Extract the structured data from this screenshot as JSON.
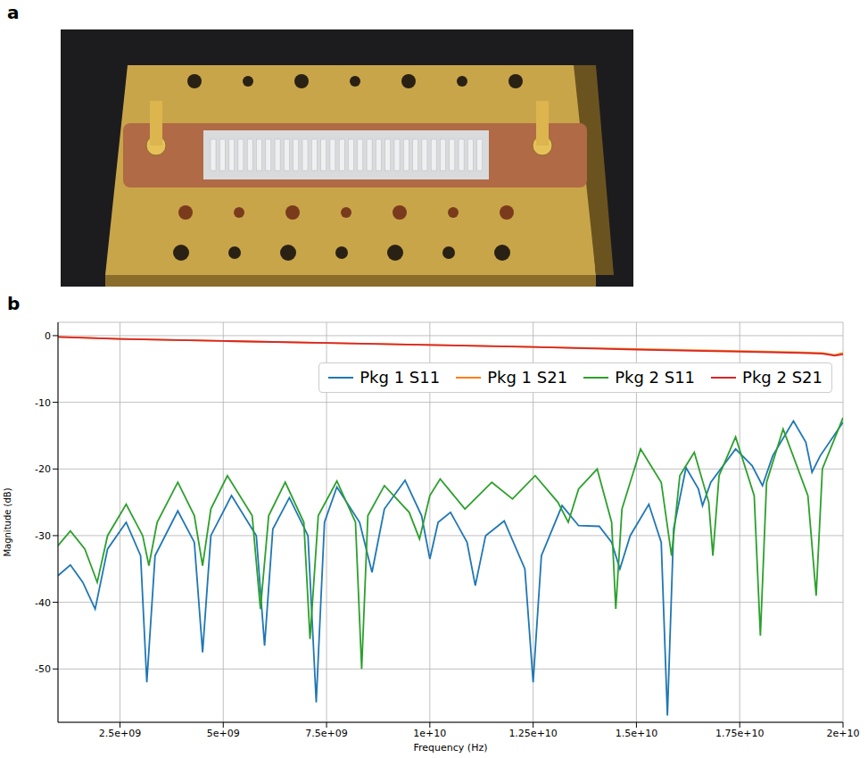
{
  "panel_labels": [
    "a",
    "b"
  ],
  "chart_data": {
    "type": "line",
    "x_label": "Frequency (Hz)",
    "y_label": "Magnitude (dB)",
    "xlim": [
      1000000000.0,
      20000000000.0
    ],
    "ylim": [
      -58,
      2
    ],
    "xticks": [
      {
        "value": 2500000000.0,
        "label": "2.5e+09"
      },
      {
        "value": 5000000000.0,
        "label": "5e+09"
      },
      {
        "value": 7500000000.0,
        "label": "7.5e+09"
      },
      {
        "value": 10000000000.0,
        "label": "1e+10"
      },
      {
        "value": 12500000000.0,
        "label": "1.25e+10"
      },
      {
        "value": 15000000000.0,
        "label": "1.5e+10"
      },
      {
        "value": 17500000000.0,
        "label": "1.75e+10"
      },
      {
        "value": 20000000000.0,
        "label": "2e+10"
      }
    ],
    "yticks": [
      -50,
      -40,
      -30,
      -20,
      -10,
      0
    ],
    "grid": true,
    "legend": "upper right",
    "series": [
      {
        "name": "Pkg 1 S11",
        "color": "#1f77b4",
        "x": [
          1000000000.0,
          1300000000.0,
          1600000000.0,
          1900000000.0,
          2200000000.0,
          2650000000.0,
          3000000000.0,
          3150000000.0,
          3350000000.0,
          3900000000.0,
          4300000000.0,
          4500000000.0,
          4700000000.0,
          5200000000.0,
          5800000000.0,
          6000000000.0,
          6200000000.0,
          6600000000.0,
          7050000000.0,
          7250000000.0,
          7450000000.0,
          7750000000.0,
          8300000000.0,
          8600000000.0,
          8900000000.0,
          9400000000.0,
          9800000000.0,
          10000000000.0,
          10200000000.0,
          10500000000.0,
          10900000000.0,
          11100000000.0,
          11350000000.0,
          11800000000.0,
          12300000000.0,
          12500000000.0,
          12700000000.0,
          13200000000.0,
          13600000000.0,
          14100000000.0,
          14400000000.0,
          14600000000.0,
          14850000000.0,
          15300000000.0,
          15600000000.0,
          15750000000.0,
          15900000000.0,
          16200000000.0,
          16500000000.0,
          16600000000.0,
          16800000000.0,
          17400000000.0,
          17800000000.0,
          18050000000.0,
          18300000000.0,
          18800000000.0,
          19100000000.0,
          19250000000.0,
          19450000000.0,
          20000000000.0
        ],
        "values": [
          -36,
          -34.4,
          -37,
          -41,
          -32,
          -28,
          -33,
          -52,
          -33,
          -26.3,
          -31,
          -47.5,
          -30,
          -24,
          -30,
          -46.5,
          -29,
          -24.3,
          -30,
          -55,
          -28,
          -22.7,
          -28,
          -35.5,
          -26,
          -21.7,
          -27,
          -33.5,
          -28,
          -26.5,
          -31,
          -37.5,
          -30,
          -27.8,
          -35,
          -52,
          -33,
          -25.5,
          -28.5,
          -28.6,
          -31,
          -35,
          -30,
          -25.3,
          -31,
          -57,
          -29,
          -19.8,
          -23,
          -25.5,
          -22,
          -17,
          -19.5,
          -22.5,
          -18,
          -12.8,
          -16,
          -20.5,
          -18,
          -13
        ]
      },
      {
        "name": "Pkg 1 S21",
        "color": "#ff7f0e",
        "x": [
          1000000000.0,
          2500000000.0,
          5000000000.0,
          7500000000.0,
          10000000000.0,
          12500000000.0,
          15000000000.0,
          17500000000.0,
          19000000000.0,
          19500000000.0,
          19800000000.0,
          20000000000.0
        ],
        "values": [
          -0.2,
          -0.5,
          -0.8,
          -1.1,
          -1.4,
          -1.7,
          -2.0,
          -2.3,
          -2.5,
          -2.6,
          -2.9,
          -2.6
        ]
      },
      {
        "name": "Pkg 2 S11",
        "color": "#2ca02c",
        "x": [
          1000000000.0,
          1300000000.0,
          1650000000.0,
          1950000000.0,
          2200000000.0,
          2650000000.0,
          3050000000.0,
          3200000000.0,
          3400000000.0,
          3900000000.0,
          4300000000.0,
          4500000000.0,
          4700000000.0,
          5100000000.0,
          5700000000.0,
          5900000000.0,
          6100000000.0,
          6500000000.0,
          6950000000.0,
          7100000000.0,
          7300000000.0,
          7750000000.0,
          8200000000.0,
          8350000000.0,
          8500000000.0,
          8900000000.0,
          9500000000.0,
          9750000000.0,
          10000000000.0,
          10250000000.0,
          10850000000.0,
          11500000000.0,
          12000000000.0,
          12550000000.0,
          13100000000.0,
          13350000000.0,
          13600000000.0,
          14050000000.0,
          14400000000.0,
          14500000000.0,
          14650000000.0,
          15100000000.0,
          15600000000.0,
          15850000000.0,
          16050000000.0,
          16400000000.0,
          16750000000.0,
          16850000000.0,
          17000000000.0,
          17400000000.0,
          17850000000.0,
          18000000000.0,
          18150000000.0,
          18550000000.0,
          19150000000.0,
          19350000000.0,
          19500000000.0,
          20000000000.0
        ],
        "values": [
          -31.5,
          -29.3,
          -32,
          -37,
          -30,
          -25.3,
          -30,
          -34.5,
          -28,
          -22,
          -27,
          -34.5,
          -26,
          -21,
          -27,
          -41,
          -27,
          -22,
          -28,
          -45.5,
          -27,
          -21.8,
          -28,
          -50,
          -27,
          -22.5,
          -26.5,
          -30.5,
          -24,
          -21.5,
          -26,
          -22,
          -24.5,
          -21,
          -25,
          -28,
          -23,
          -20,
          -28,
          -41,
          -26,
          -17,
          -22,
          -33,
          -21,
          -17.5,
          -25,
          -33,
          -21,
          -15.2,
          -24,
          -45,
          -22,
          -14,
          -24,
          -39,
          -20,
          -12.3
        ]
      },
      {
        "name": "Pkg 2 S21",
        "color": "#d62728",
        "x": [
          1000000000.0,
          2500000000.0,
          5000000000.0,
          7500000000.0,
          10000000000.0,
          12500000000.0,
          15000000000.0,
          17500000000.0,
          19000000000.0,
          19500000000.0,
          19800000000.0,
          20000000000.0
        ],
        "values": [
          -0.2,
          -0.5,
          -0.8,
          -1.1,
          -1.4,
          -1.7,
          -2.1,
          -2.4,
          -2.6,
          -2.7,
          -3.0,
          -2.8
        ]
      }
    ]
  }
}
